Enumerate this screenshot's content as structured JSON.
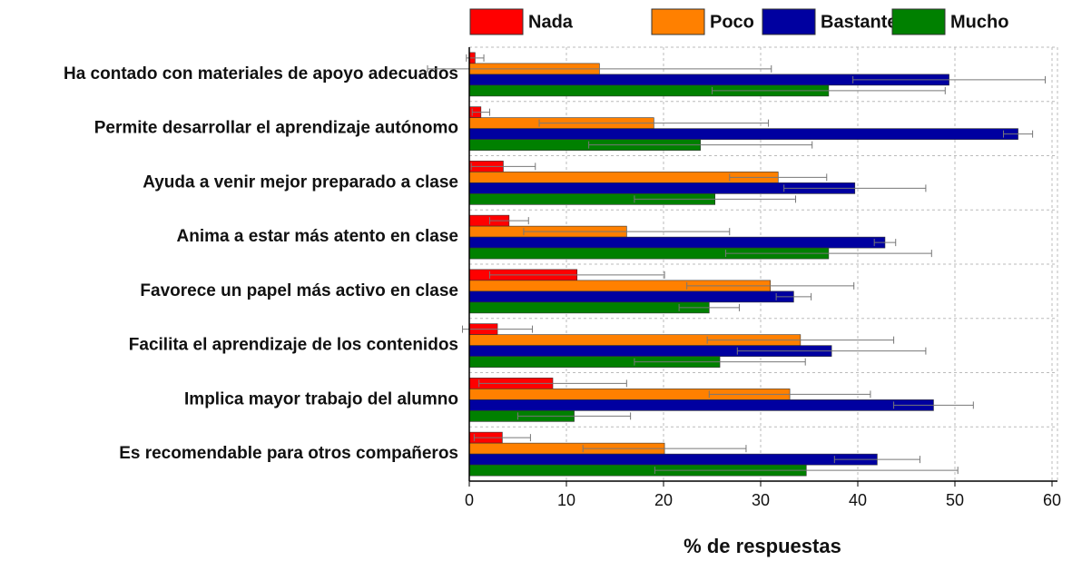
{
  "chart_data": {
    "type": "barh",
    "xlabel": "% de respuestas",
    "categories": [
      "Ha contado con materiales de apoyo adecuados",
      "Permite desarrollar el aprendizaje autónomo",
      "Ayuda a venir mejor preparado a clase",
      "Anima a estar más atento en clase",
      "Favorece un papel más activo en clase",
      "Facilita el aprendizaje de los contenidos",
      "Implica mayor trabajo del alumno",
      "Es recomendable para otros compañeros"
    ],
    "series": [
      {
        "name": "Nada",
        "color": "#ff0000",
        "values": [
          0.6,
          1.2,
          3.5,
          4.1,
          11.1,
          2.9,
          8.6,
          3.4
        ],
        "errors": [
          0.9,
          0.9,
          3.3,
          2.0,
          9.0,
          3.6,
          7.6,
          2.9
        ]
      },
      {
        "name": "Poco",
        "color": "#ff8000",
        "values": [
          13.4,
          19.0,
          31.8,
          16.2,
          31.0,
          34.1,
          33.0,
          20.1
        ],
        "errors": [
          17.7,
          11.8,
          5.0,
          10.6,
          8.6,
          9.6,
          8.3,
          8.4
        ]
      },
      {
        "name": "Bastante",
        "color": "#0000a0",
        "values": [
          49.4,
          56.5,
          39.7,
          42.8,
          33.4,
          37.3,
          47.8,
          42.0
        ],
        "errors": [
          9.9,
          1.5,
          7.3,
          1.1,
          1.8,
          9.7,
          4.1,
          4.4
        ]
      },
      {
        "name": "Mucho",
        "color": "#008000",
        "values": [
          37.0,
          23.8,
          25.3,
          37.0,
          24.7,
          25.8,
          10.8,
          34.7
        ],
        "errors": [
          12.0,
          11.5,
          8.3,
          10.6,
          3.1,
          8.8,
          5.8,
          15.6
        ]
      }
    ],
    "xlim": [
      0,
      60
    ],
    "xticks": [
      0,
      10,
      20,
      30,
      40,
      50,
      60
    ],
    "grid": true
  }
}
